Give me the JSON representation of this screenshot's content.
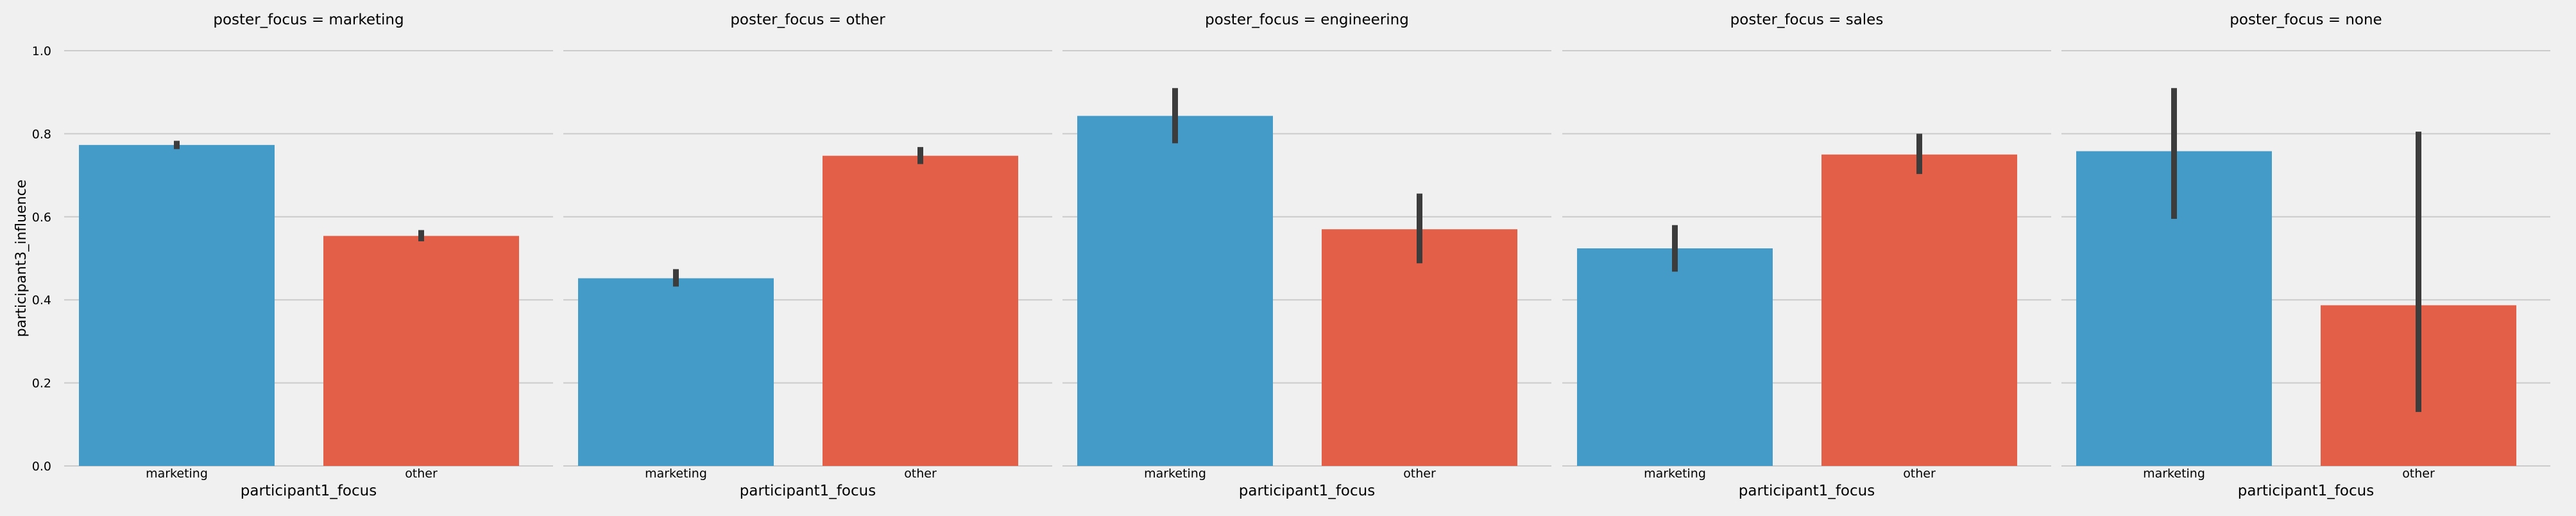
{
  "chart_data": {
    "type": "bar",
    "layout": "faceted",
    "facet_variable": "poster_focus",
    "xlabel": "participant1_focus",
    "ylabel": "participant3_influence",
    "ylim": [
      0,
      1.0
    ],
    "yticks": [
      "0.0",
      "0.2",
      "0.4",
      "0.6",
      "0.8",
      "1.0"
    ],
    "grid": true,
    "categories": [
      "marketing",
      "other"
    ],
    "colors": {
      "marketing": "#449bc8",
      "other": "#e45f48",
      "errorbar": "#3c3c3c",
      "grid": "#cbcbcb",
      "background": "#f0f0f0"
    },
    "facets": [
      {
        "title": "poster_focus = marketing",
        "values": [
          0.773,
          0.554
        ],
        "ci_low": [
          0.763,
          0.541
        ],
        "ci_high": [
          0.783,
          0.568
        ]
      },
      {
        "title": "poster_focus = other",
        "values": [
          0.452,
          0.747
        ],
        "ci_low": [
          0.432,
          0.727
        ],
        "ci_high": [
          0.474,
          0.768
        ]
      },
      {
        "title": "poster_focus = engineering",
        "values": [
          0.843,
          0.57
        ],
        "ci_low": [
          0.777,
          0.488
        ],
        "ci_high": [
          0.91,
          0.656
        ]
      },
      {
        "title": "poster_focus = sales",
        "values": [
          0.524,
          0.75
        ],
        "ci_low": [
          0.468,
          0.703
        ],
        "ci_high": [
          0.58,
          0.8
        ]
      },
      {
        "title": "poster_focus = none",
        "values": [
          0.758,
          0.387
        ],
        "ci_low": [
          0.595,
          0.13
        ],
        "ci_high": [
          0.91,
          0.805
        ]
      }
    ]
  }
}
